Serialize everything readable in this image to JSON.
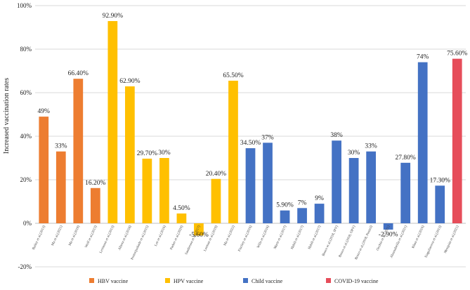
{
  "chart_data": {
    "type": "bar",
    "title": "",
    "xlabel": "",
    "ylabel": "Increased vaccination rates",
    "ylim": [
      -20,
      100
    ],
    "yticks": [
      "-20%",
      "0%",
      "20%",
      "40%",
      "60%",
      "80%",
      "100%"
    ],
    "grid": true,
    "legend_position": "bottom",
    "groups": [
      {
        "name": "HBV vaccine",
        "color": "#ED7D31"
      },
      {
        "name": "HPV vaccine",
        "color": "#FFC000"
      },
      {
        "name": "Child vaccine",
        "color": "#4472C4"
      },
      {
        "name": "COVID-19 vaccine",
        "color": "#E64D5A"
      }
    ],
    "bars": [
      {
        "category": "Bailey et al.(2013)",
        "value": 49,
        "label": "49%",
        "group": 0
      },
      {
        "category": "Ma et al.(2021)",
        "value": 33,
        "label": "33%",
        "group": 0
      },
      {
        "category": "Ma et al.(2019)",
        "value": 66.4,
        "label": "66.40%",
        "group": 0
      },
      {
        "category": "Wolf et al.(2013)",
        "value": 16.2,
        "label": "16.20%",
        "group": 0
      },
      {
        "category": "Levinson et al.(2013)",
        "value": 92.9,
        "label": "92.90%",
        "group": 1
      },
      {
        "category": "Albora et al.(2018)",
        "value": 62.9,
        "label": "62.90%",
        "group": 1
      },
      {
        "category": "Pretorijusbade et al.(2015)",
        "value": 29.7,
        "label": "29.70%",
        "group": 1
      },
      {
        "category": "Lee et al.(2016)",
        "value": 30,
        "label": "30%",
        "group": 1
      },
      {
        "category": "Parker et al.(2020)",
        "value": 4.5,
        "label": "4.50%",
        "group": 1
      },
      {
        "category": "Sanderson et al.(2017)",
        "value": -5.6,
        "label": "-5.60%",
        "group": 1
      },
      {
        "category": "Lerman et al.(2019)",
        "value": 20.4,
        "label": "20.40%",
        "group": 1
      },
      {
        "category": "Ma et al.(2022)",
        "value": 65.5,
        "label": "65.50%",
        "group": 1
      },
      {
        "category": "Fiscliey et al.(2016)",
        "value": 34.5,
        "label": "34.50%",
        "group": 2
      },
      {
        "category": "Wills et al.(2016)",
        "value": 37,
        "label": "37%",
        "group": 2
      },
      {
        "category": "Marie et al.(2017)",
        "value": 5.9,
        "label": "5.90%",
        "group": 2
      },
      {
        "category": "Habib et al.(2017)",
        "value": 7,
        "label": "7%",
        "group": 2
      },
      {
        "category": "Habib et al.(2017)",
        "value": 9,
        "label": "9%",
        "group": 2
      },
      {
        "category": "Bosco et al.(2018, IPV)",
        "value": 38,
        "label": "38%",
        "group": 2
      },
      {
        "category": "Bosco et al.(2018, OPV)",
        "value": 30,
        "label": "30%",
        "group": 2
      },
      {
        "category": "Bosco et al.(2018, Penta3)",
        "value": 33,
        "label": "33%",
        "group": 2
      },
      {
        "category": "Occhio et al.(2021)",
        "value": -2.9,
        "label": "-2.90%",
        "group": 2
      },
      {
        "category": "Abuasabeilla et al.(2021)",
        "value": 27.8,
        "label": "27.80%",
        "group": 2
      },
      {
        "category": "Khan et al.(2016)",
        "value": 74,
        "label": "74%",
        "group": 2
      },
      {
        "category": "Siaguilacova et al.(2013)",
        "value": 17.3,
        "label": "17.30%",
        "group": 2
      },
      {
        "category": "Mesquita et al.(2021)",
        "value": 75.6,
        "label": "75.60%",
        "group": 3
      }
    ]
  }
}
